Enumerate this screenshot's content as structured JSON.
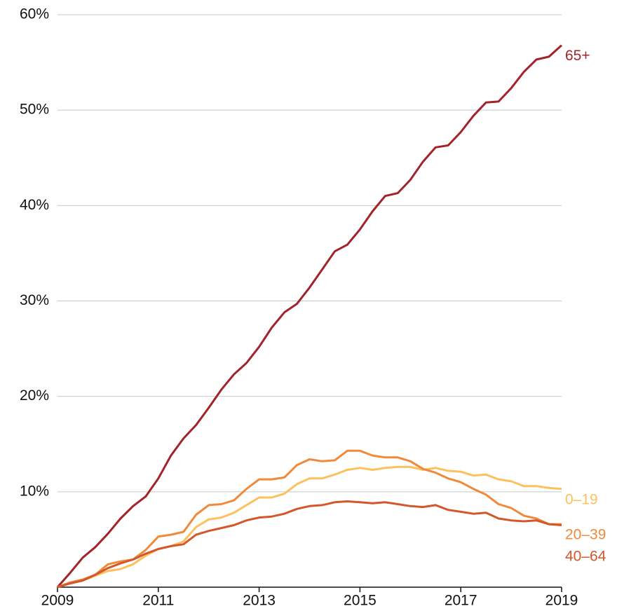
{
  "chart_data": {
    "type": "line",
    "x": [
      2009,
      2009.25,
      2009.5,
      2009.75,
      2010,
      2010.25,
      2010.5,
      2010.75,
      2011,
      2011.25,
      2011.5,
      2011.75,
      2012,
      2012.25,
      2012.5,
      2012.75,
      2013,
      2013.25,
      2013.5,
      2013.75,
      2014,
      2014.25,
      2014.5,
      2014.75,
      2015,
      2015.25,
      2015.5,
      2015.75,
      2016,
      2016.25,
      2016.5,
      2016.75,
      2017,
      2017.25,
      2017.5,
      2017.75,
      2018,
      2018.25,
      2018.5,
      2018.75,
      2019
    ],
    "series": [
      {
        "name": "65+",
        "color": "#a3232a",
        "values": [
          0,
          1.5,
          3.1,
          4.2,
          5.6,
          7.2,
          8.5,
          9.5,
          11.4,
          13.8,
          15.6,
          17.0,
          18.8,
          20.7,
          22.3,
          23.5,
          25.2,
          27.2,
          28.8,
          29.7,
          31.4,
          33.3,
          35.2,
          35.9,
          37.5,
          39.4,
          41.0,
          41.3,
          42.7,
          44.6,
          46.1,
          46.3,
          47.7,
          49.4,
          50.8,
          50.9,
          52.3,
          54.0,
          55.3,
          55.6,
          56.8
        ]
      },
      {
        "name": "0–19",
        "color": "#fdc05f",
        "values": [
          0,
          0.4,
          0.7,
          1.2,
          1.7,
          1.9,
          2.4,
          3.3,
          4.0,
          4.3,
          4.8,
          6.3,
          7.1,
          7.3,
          7.8,
          8.6,
          9.4,
          9.4,
          9.8,
          10.8,
          11.4,
          11.4,
          11.8,
          12.3,
          12.5,
          12.3,
          12.5,
          12.6,
          12.6,
          12.3,
          12.5,
          12.2,
          12.1,
          11.7,
          11.8,
          11.3,
          11.1,
          10.6,
          10.6,
          10.4,
          10.3
        ]
      },
      {
        "name": "20–39",
        "color": "#f08a3a",
        "values": [
          0,
          0.5,
          0.8,
          1.3,
          2.4,
          2.7,
          2.9,
          3.9,
          5.3,
          5.5,
          5.8,
          7.6,
          8.6,
          8.7,
          9.1,
          10.3,
          11.3,
          11.3,
          11.5,
          12.8,
          13.4,
          13.2,
          13.3,
          14.3,
          14.3,
          13.8,
          13.6,
          13.6,
          13.2,
          12.4,
          12.0,
          11.4,
          11.0,
          10.3,
          9.7,
          8.7,
          8.3,
          7.5,
          7.2,
          6.6,
          6.6
        ]
      },
      {
        "name": "40–64",
        "color": "#d4562b",
        "values": [
          0,
          0.4,
          0.7,
          1.3,
          2.0,
          2.5,
          2.9,
          3.5,
          4.0,
          4.3,
          4.5,
          5.5,
          5.9,
          6.2,
          6.5,
          7.0,
          7.3,
          7.4,
          7.7,
          8.2,
          8.5,
          8.6,
          8.9,
          9.0,
          8.9,
          8.8,
          8.9,
          8.7,
          8.5,
          8.4,
          8.6,
          8.1,
          7.9,
          7.7,
          7.8,
          7.2,
          7.0,
          6.9,
          7.0,
          6.6,
          6.5
        ]
      }
    ],
    "xlim": [
      2009,
      2019
    ],
    "xticks": [
      2009,
      2011,
      2013,
      2015,
      2017,
      2019
    ],
    "ylim": [
      0,
      60
    ],
    "yticks": [
      {
        "value": 10,
        "label": "10%"
      },
      {
        "value": 20,
        "label": "20%"
      },
      {
        "value": 30,
        "label": "30%"
      },
      {
        "value": 40,
        "label": "40%"
      },
      {
        "value": 50,
        "label": "50%"
      },
      {
        "value": 60,
        "label": "60%"
      }
    ],
    "grid": true
  }
}
